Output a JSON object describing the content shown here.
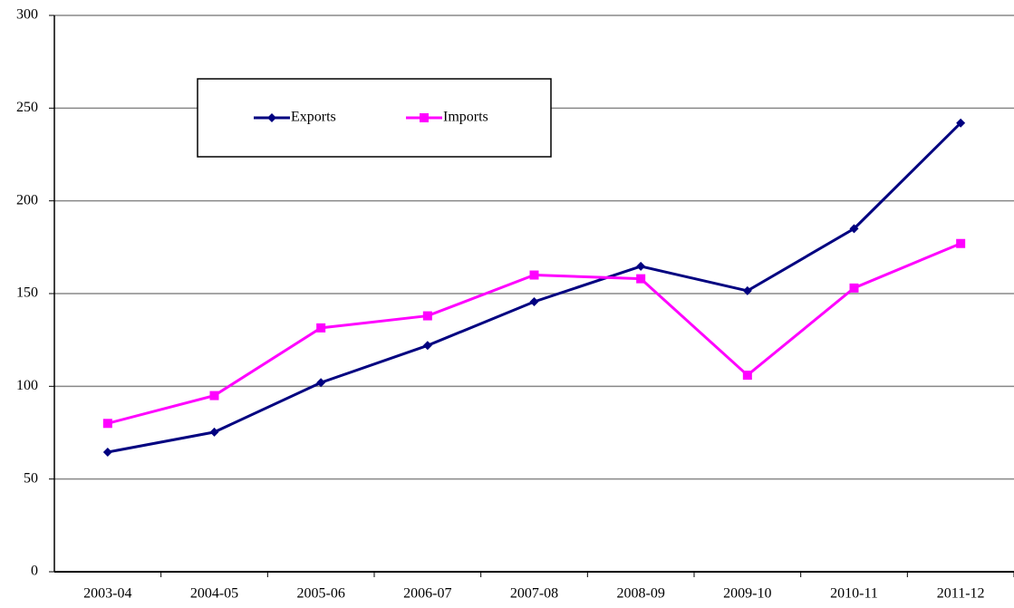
{
  "chart_data": {
    "type": "line",
    "categories": [
      "2003-04",
      "2004-05",
      "2005-06",
      "2006-07",
      "2007-08",
      "2008-09",
      "2009-10",
      "2010-11",
      "2011-12"
    ],
    "series": [
      {
        "name": "Exports",
        "color": "#000080",
        "marker": "diamond",
        "values": [
          64.5,
          75.3,
          102,
          122,
          145.6,
          164.7,
          151.5,
          185,
          242
        ]
      },
      {
        "name": "Imports",
        "color": "#ff00ff",
        "marker": "square",
        "values": [
          80,
          95,
          131.5,
          138,
          160,
          158,
          106,
          153,
          177
        ]
      }
    ],
    "ylim": [
      0,
      300
    ],
    "yticks": [
      0,
      50,
      100,
      150,
      200,
      250,
      300
    ],
    "grid": true,
    "legend": "top-left"
  }
}
